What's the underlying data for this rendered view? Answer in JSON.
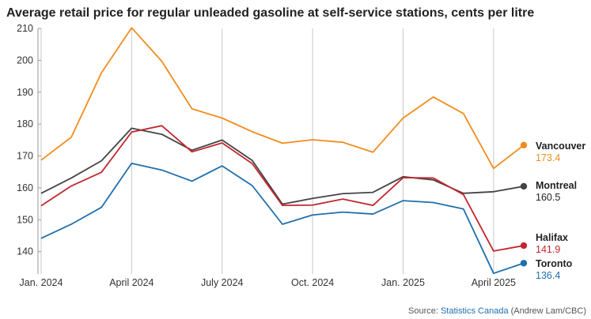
{
  "chart_data": {
    "type": "line",
    "title": "Average retail price for regular unleaded gasoline at self-service stations, cents per litre",
    "xlabel": "",
    "ylabel": "",
    "ylim": [
      133,
      210
    ],
    "yticks": [
      140,
      150,
      160,
      170,
      180,
      190,
      200,
      210
    ],
    "x": [
      "2024-01",
      "2024-02",
      "2024-03",
      "2024-04",
      "2024-05",
      "2024-06",
      "2024-07",
      "2024-08",
      "2024-09",
      "2024-10",
      "2024-11",
      "2024-12",
      "2025-01",
      "2025-02",
      "2025-03",
      "2025-04",
      "2025-05"
    ],
    "xtick_labels": [
      {
        "x": "2024-01",
        "label": "Jan. 2024"
      },
      {
        "x": "2024-04",
        "label": "April 2024"
      },
      {
        "x": "2024-07",
        "label": "July 2024"
      },
      {
        "x": "2024-10",
        "label": "Oct. 2024"
      },
      {
        "x": "2025-01",
        "label": "Jan. 2025"
      },
      {
        "x": "2025-04",
        "label": "April 2025"
      }
    ],
    "grid": "vertical",
    "series": [
      {
        "name": "Vancouver",
        "color": "#f28c1c",
        "last_label": "173.4",
        "values": [
          168.7,
          175.9,
          196.1,
          210.2,
          199.7,
          184.8,
          181.9,
          177.6,
          174.0,
          175.1,
          174.3,
          171.2,
          181.9,
          188.5,
          183.3,
          166.1,
          173.4
        ]
      },
      {
        "name": "Montreal",
        "color": "#444444",
        "last_label": "160.5",
        "values": [
          158.3,
          163.1,
          168.5,
          178.7,
          176.8,
          171.8,
          175.0,
          168.6,
          154.9,
          156.7,
          158.2,
          158.6,
          163.5,
          162.5,
          158.3,
          158.8,
          160.5
        ]
      },
      {
        "name": "Halifax",
        "color": "#c1272d",
        "last_label": "141.9",
        "values": [
          154.4,
          160.6,
          164.9,
          177.5,
          179.5,
          171.3,
          174.1,
          167.6,
          154.5,
          154.6,
          156.5,
          154.5,
          163.2,
          163.1,
          157.9,
          140.2,
          141.9
        ]
      },
      {
        "name": "Toronto",
        "color": "#1f6fad",
        "last_label": "136.4",
        "values": [
          144.2,
          148.6,
          153.9,
          167.7,
          165.6,
          162.1,
          166.9,
          160.7,
          148.6,
          151.5,
          152.4,
          151.8,
          156.0,
          155.4,
          153.4,
          133.2,
          136.4
        ]
      }
    ],
    "source_prefix": "Source: ",
    "source_link": "Statistics Canada",
    "source_suffix": " (Andrew Lam/CBC)",
    "link_color": "#1f6fad"
  }
}
